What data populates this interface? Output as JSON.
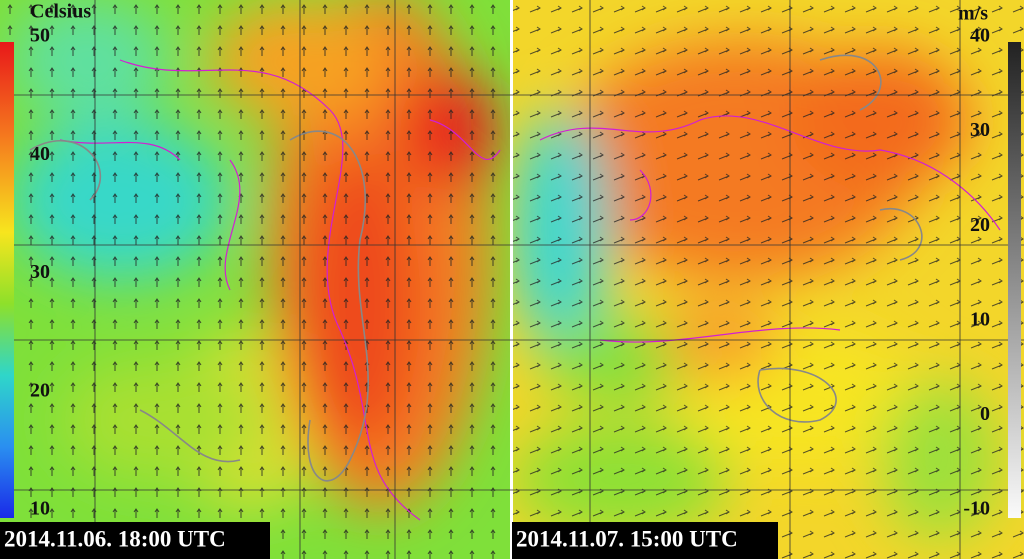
{
  "left_panel": {
    "scale_unit": "Celsius",
    "scale_ticks": [
      50,
      40,
      30,
      20,
      10
    ],
    "timestamp": "2014.11.06. 18:00 UTC"
  },
  "right_panel": {
    "scale_unit": "m/s",
    "scale_ticks": [
      40,
      30,
      20,
      10,
      0,
      -10
    ],
    "timestamp": "2014.11.07. 15:00 UTC"
  }
}
